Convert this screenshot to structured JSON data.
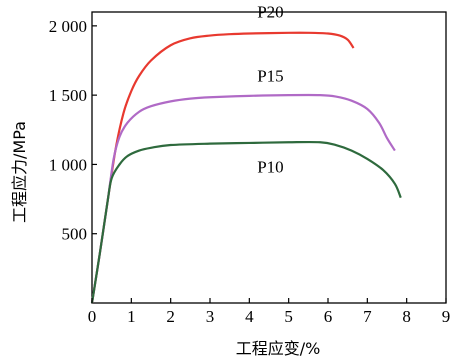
{
  "chart_data": {
    "type": "line",
    "title": "",
    "xlabel": "工程应变/%",
    "ylabel": "工程应力/MPa",
    "xlim": [
      0,
      9
    ],
    "ylim": [
      0,
      2100
    ],
    "x_ticks": [
      {
        "value": 0,
        "label": "0"
      },
      {
        "value": 1,
        "label": "1"
      },
      {
        "value": 2,
        "label": "2"
      },
      {
        "value": 3,
        "label": "3"
      },
      {
        "value": 4,
        "label": "4"
      },
      {
        "value": 5,
        "label": "5"
      },
      {
        "value": 6,
        "label": "6"
      },
      {
        "value": 7,
        "label": "7"
      },
      {
        "value": 8,
        "label": "8"
      },
      {
        "value": 9,
        "label": "9"
      }
    ],
    "y_ticks": [
      {
        "value": 500,
        "label": "500"
      },
      {
        "value": 1000,
        "label": "1 000"
      },
      {
        "value": 1500,
        "label": "1 500"
      },
      {
        "value": 2000,
        "label": "2 000"
      }
    ],
    "grid": false,
    "legend": "none",
    "series": [
      {
        "name": "P20",
        "color": "#e8392f",
        "label_at": {
          "x": 4.2,
          "y": 2060
        },
        "points": [
          [
            0,
            0
          ],
          [
            0.2,
            360
          ],
          [
            0.4,
            740
          ],
          [
            0.6,
            1110
          ],
          [
            0.8,
            1370
          ],
          [
            1.0,
            1530
          ],
          [
            1.2,
            1640
          ],
          [
            1.5,
            1750
          ],
          [
            2.0,
            1860
          ],
          [
            2.5,
            1910
          ],
          [
            3.0,
            1930
          ],
          [
            3.5,
            1940
          ],
          [
            4.0,
            1945
          ],
          [
            5.0,
            1950
          ],
          [
            5.5,
            1950
          ],
          [
            6.0,
            1945
          ],
          [
            6.3,
            1930
          ],
          [
            6.5,
            1900
          ],
          [
            6.65,
            1840
          ]
        ]
      },
      {
        "name": "P15",
        "color": "#b06ac6",
        "label_at": {
          "x": 4.2,
          "y": 1600
        },
        "points": [
          [
            0,
            0
          ],
          [
            0.2,
            360
          ],
          [
            0.4,
            740
          ],
          [
            0.55,
            1040
          ],
          [
            0.7,
            1200
          ],
          [
            0.9,
            1300
          ],
          [
            1.2,
            1380
          ],
          [
            1.5,
            1420
          ],
          [
            2.0,
            1455
          ],
          [
            2.5,
            1475
          ],
          [
            3.0,
            1485
          ],
          [
            4.0,
            1495
          ],
          [
            5.0,
            1500
          ],
          [
            5.8,
            1500
          ],
          [
            6.2,
            1490
          ],
          [
            6.6,
            1460
          ],
          [
            7.0,
            1400
          ],
          [
            7.3,
            1300
          ],
          [
            7.5,
            1190
          ],
          [
            7.7,
            1100
          ]
        ]
      },
      {
        "name": "P10",
        "color": "#2e6a3d",
        "label_at": {
          "x": 4.2,
          "y": 940
        },
        "points": [
          [
            0,
            0
          ],
          [
            0.2,
            360
          ],
          [
            0.4,
            740
          ],
          [
            0.5,
            900
          ],
          [
            0.7,
            1000
          ],
          [
            0.9,
            1060
          ],
          [
            1.2,
            1100
          ],
          [
            1.5,
            1120
          ],
          [
            2.0,
            1140
          ],
          [
            3.0,
            1150
          ],
          [
            4.0,
            1155
          ],
          [
            5.0,
            1160
          ],
          [
            5.8,
            1160
          ],
          [
            6.2,
            1140
          ],
          [
            6.6,
            1100
          ],
          [
            7.0,
            1040
          ],
          [
            7.4,
            960
          ],
          [
            7.7,
            860
          ],
          [
            7.85,
            760
          ]
        ]
      }
    ]
  }
}
